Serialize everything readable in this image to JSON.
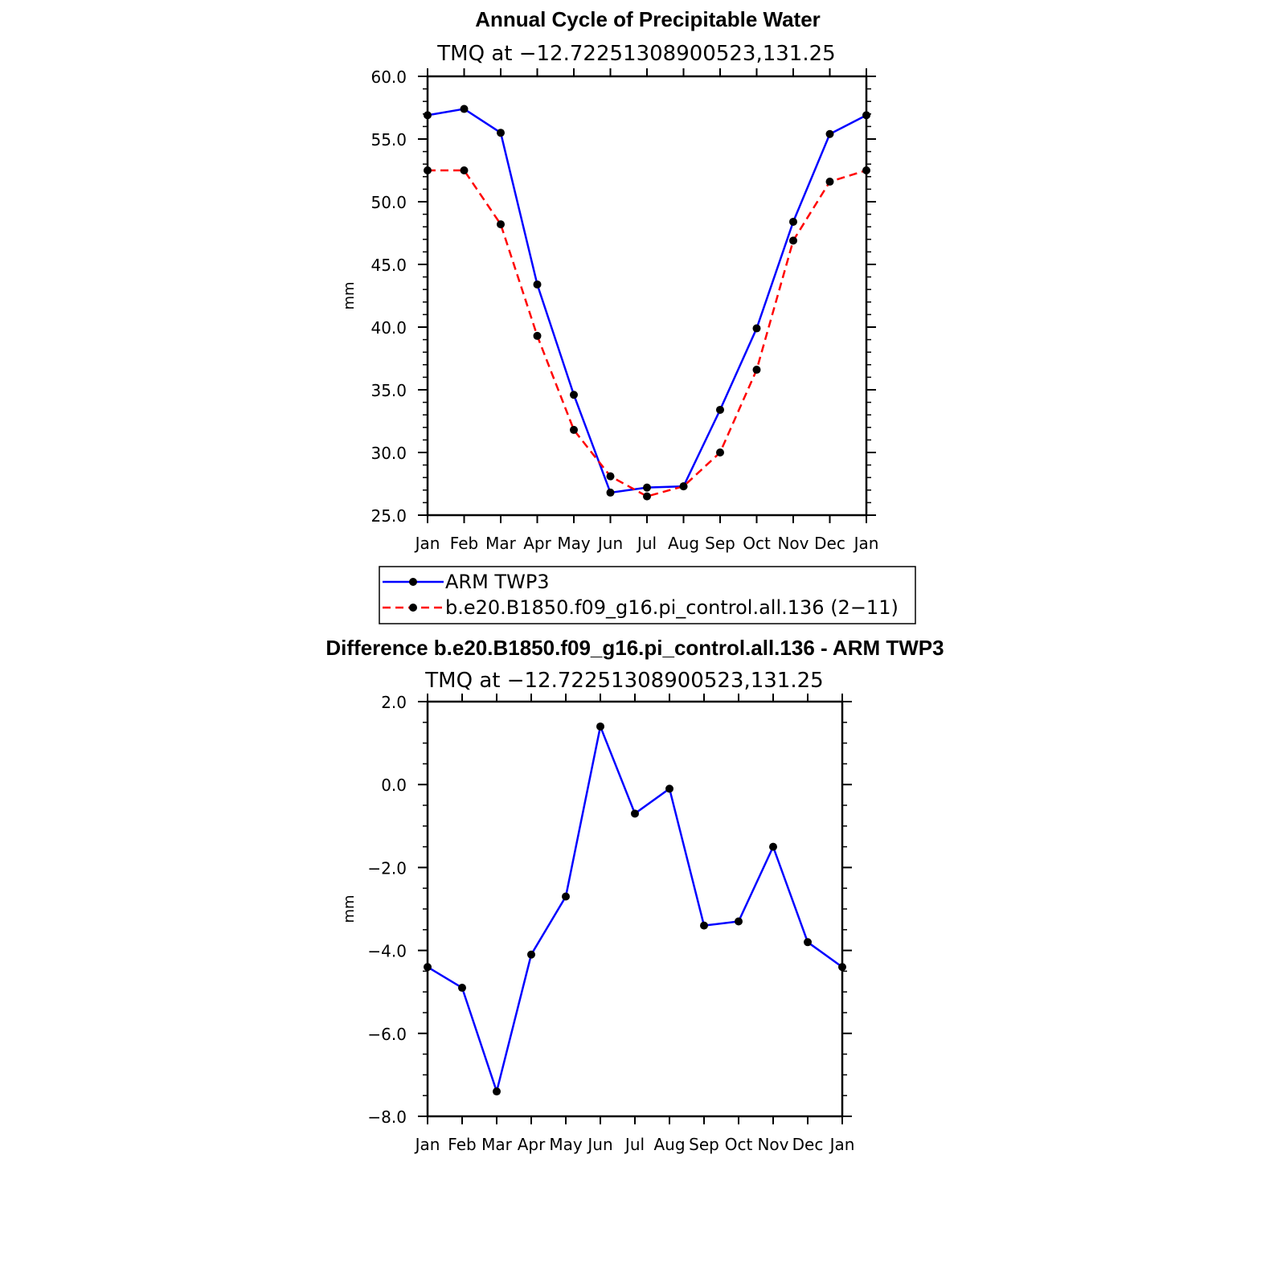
{
  "colors": {
    "series1": "#0000ff",
    "series2": "#ff0000",
    "marker": "#000000",
    "axis": "#000000"
  },
  "chart_data": [
    {
      "type": "line",
      "title": "Annual Cycle of Precipitable Water",
      "subtitle": "TMQ at −12.72251308900523,131.25",
      "ylabel": "mm",
      "ylim": [
        25,
        60
      ],
      "yticks": [
        "25.0",
        "30.0",
        "35.0",
        "40.0",
        "45.0",
        "50.0",
        "55.0",
        "60.0"
      ],
      "categories": [
        "Jan",
        "Feb",
        "Mar",
        "Apr",
        "May",
        "Jun",
        "Jul",
        "Aug",
        "Sep",
        "Oct",
        "Nov",
        "Dec",
        "Jan"
      ],
      "series": [
        {
          "name": "ARM TWP3",
          "style": "solid",
          "values": [
            56.9,
            57.4,
            55.5,
            43.4,
            34.6,
            26.8,
            27.2,
            27.3,
            33.4,
            39.9,
            48.4,
            55.4,
            56.9
          ]
        },
        {
          "name": "b.e20.B1850.f09_g16.pi_control.all.136 (2−11)",
          "style": "dashed",
          "values": [
            52.5,
            52.5,
            48.2,
            39.3,
            31.8,
            28.1,
            26.5,
            27.3,
            30.0,
            36.6,
            46.9,
            51.6,
            52.5
          ]
        }
      ],
      "legend": "below"
    },
    {
      "type": "line",
      "title": "Difference b.e20.B1850.f09_g16.pi_control.all.136 - ARM TWP3",
      "subtitle": "TMQ at −12.72251308900523,131.25",
      "ylabel": "mm",
      "ylim": [
        -8,
        2
      ],
      "yticks": [
        "−8.0",
        "−6.0",
        "−4.0",
        "−2.0",
        "0.0",
        "2.0"
      ],
      "categories": [
        "Jan",
        "Feb",
        "Mar",
        "Apr",
        "May",
        "Jun",
        "Jul",
        "Aug",
        "Sep",
        "Oct",
        "Nov",
        "Dec",
        "Jan"
      ],
      "series": [
        {
          "style": "solid",
          "values": [
            -4.4,
            -4.9,
            -7.4,
            -4.1,
            -2.7,
            1.4,
            -0.7,
            -0.1,
            -3.4,
            -3.3,
            -1.5,
            -3.8,
            -4.4
          ]
        }
      ]
    }
  ]
}
